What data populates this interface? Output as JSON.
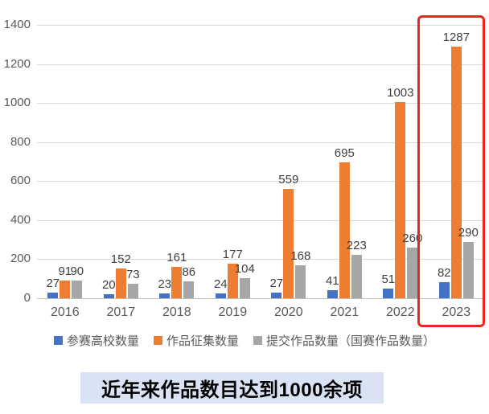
{
  "banner": {
    "text": "近年来作品数目达到1000余项",
    "bg_color": "#dae3f3"
  },
  "chart_data": {
    "type": "bar",
    "categories": [
      "2016",
      "2017",
      "2018",
      "2019",
      "2020",
      "2021",
      "2022",
      "2023"
    ],
    "series": [
      {
        "name": "参赛高校数量",
        "color": "#4472c4",
        "values": [
          27,
          20,
          23,
          24,
          27,
          41,
          51,
          82
        ]
      },
      {
        "name": "作品征集数量",
        "color": "#ed7d31",
        "values": [
          91,
          152,
          161,
          177,
          559,
          695,
          1003,
          1287
        ]
      },
      {
        "name": "提交作品数量（国赛作品数量）",
        "color": "#a6a6a6",
        "values": [
          90,
          73,
          86,
          104,
          168,
          223,
          260,
          290
        ]
      }
    ],
    "title": "",
    "xlabel": "",
    "ylabel": "",
    "ylim": [
      0,
      1400
    ],
    "ytick_step": 200,
    "grid": true,
    "legend_position": "bottom",
    "data_labels": true,
    "highlight": {
      "category": "2023",
      "color": "#e8251f"
    }
  },
  "colors": {
    "gridline": "#d9d9d9",
    "axisline": "#bfbfbf",
    "tick_text": "#595959",
    "label_text": "#3f3f3f"
  }
}
